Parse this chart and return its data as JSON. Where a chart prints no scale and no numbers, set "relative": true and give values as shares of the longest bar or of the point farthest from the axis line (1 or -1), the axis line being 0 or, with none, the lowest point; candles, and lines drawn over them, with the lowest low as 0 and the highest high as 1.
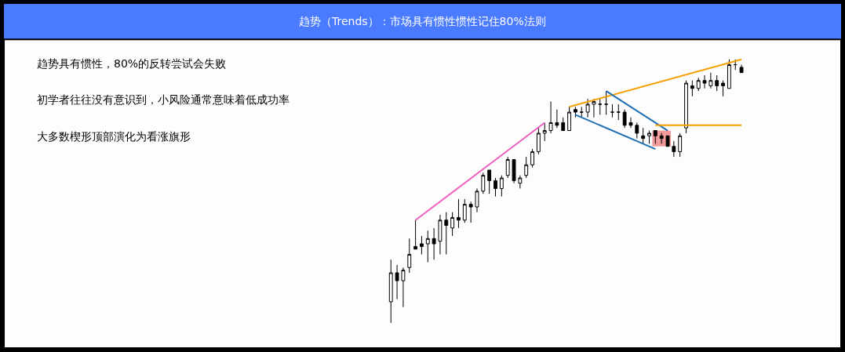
{
  "chart_data": {
    "type": "candlestick",
    "relative": true,
    "title": "趋势（Trends）：市场具有惯性惯性记住80%法则",
    "annotations": [
      "趋势具有惯性，80%的反转尝试会失败",
      "初学者往往没有意识到，小风险通常意味着低成功率",
      "大多数楔形顶部演化为看涨旗形"
    ],
    "categories": [
      null,
      null,
      null,
      null,
      null,
      null,
      null,
      null,
      null,
      null,
      null,
      null,
      null,
      null,
      null,
      null,
      null,
      null,
      null,
      null,
      null,
      null,
      null,
      null,
      null,
      null,
      null,
      null,
      null,
      null,
      null,
      null,
      null,
      null,
      null,
      null,
      null,
      null,
      null,
      null,
      null,
      null,
      null,
      null,
      null,
      null,
      null,
      null,
      null,
      null,
      null,
      null,
      null,
      null,
      null,
      null,
      null,
      null
    ],
    "ohlc": [
      [
        0.08,
        0.24,
        0,
        0.19
      ],
      [
        0.19,
        0.22,
        0.09,
        0.16
      ],
      [
        0.16,
        0.21,
        0.06,
        0.2
      ],
      [
        0.21,
        0.32,
        0.19,
        0.26
      ],
      [
        0.29,
        0.39,
        0.28,
        0.28
      ],
      [
        0.3,
        0.33,
        0.26,
        0.29
      ],
      [
        0.3,
        0.35,
        0.23,
        0.32
      ],
      [
        0.32,
        0.36,
        0.24,
        0.3
      ],
      [
        0.31,
        0.41,
        0.26,
        0.39
      ],
      [
        0.39,
        0.42,
        0.26,
        0.37
      ],
      [
        0.36,
        0.42,
        0.33,
        0.4
      ],
      [
        0.4,
        0.47,
        0.36,
        0.39
      ],
      [
        0.39,
        0.47,
        0.38,
        0.45
      ],
      [
        0.45,
        0.46,
        0.38,
        0.44
      ],
      [
        0.44,
        0.51,
        0.42,
        0.5
      ],
      [
        0.5,
        0.57,
        0.49,
        0.56
      ],
      [
        0.58,
        0.58,
        0.49,
        0.54
      ],
      [
        0.54,
        0.55,
        0.48,
        0.51
      ],
      [
        0.51,
        0.56,
        0.48,
        0.55
      ],
      [
        0.56,
        0.63,
        0.55,
        0.62
      ],
      [
        0.62,
        0.62,
        0.53,
        0.54
      ],
      [
        0.53,
        0.56,
        0.51,
        0.55
      ],
      [
        0.56,
        0.63,
        0.55,
        0.6
      ],
      [
        0.6,
        0.66,
        0.59,
        0.65
      ],
      [
        0.65,
        0.74,
        0.64,
        0.72
      ],
      [
        0.72,
        0.76,
        0.69,
        0.73
      ],
      [
        0.73,
        0.84,
        0.72,
        0.76
      ],
      [
        0.76,
        0.81,
        0.74,
        0.75
      ],
      [
        0.76,
        0.78,
        0.73,
        0.73
      ],
      [
        0.73,
        0.82,
        0.73,
        0.8
      ],
      [
        0.81,
        0.82,
        0.78,
        0.8
      ],
      [
        0.8,
        0.82,
        0.78,
        0.8
      ],
      [
        0.8,
        0.85,
        0.78,
        0.83
      ],
      [
        0.83,
        0.85,
        0.78,
        0.84
      ],
      [
        0.83,
        0.85,
        0.79,
        0.83
      ],
      [
        0.83,
        0.88,
        0.79,
        0.83
      ],
      [
        0.8,
        0.83,
        0.78,
        0.8
      ],
      [
        0.8,
        0.83,
        0.77,
        0.8
      ],
      [
        0.8,
        0.81,
        0.74,
        0.75
      ],
      [
        0.76,
        0.78,
        0.74,
        0.75
      ],
      [
        0.75,
        0.76,
        0.7,
        0.72
      ],
      [
        0.71,
        0.74,
        0.68,
        0.7
      ],
      [
        0.71,
        0.73,
        0.68,
        0.72
      ],
      [
        0.73,
        0.73,
        0.68,
        0.71
      ],
      [
        0.71,
        0.72,
        0.68,
        0.7
      ],
      [
        0.71,
        0.71,
        0.67,
        0.67
      ],
      [
        0.67,
        0.69,
        0.63,
        0.65
      ],
      [
        0.65,
        0.72,
        0.63,
        0.71
      ],
      [
        0.74,
        0.92,
        0.72,
        0.91
      ],
      [
        0.9,
        0.92,
        0.86,
        0.89
      ],
      [
        0.89,
        0.93,
        0.88,
        0.92
      ],
      [
        0.92,
        0.94,
        0.89,
        0.91
      ],
      [
        0.9,
        0.95,
        0.89,
        0.92
      ],
      [
        0.92,
        0.94,
        0.88,
        0.9
      ],
      [
        0.91,
        0.92,
        0.86,
        0.9
      ],
      [
        0.89,
        1.0,
        0.89,
        0.98
      ],
      [
        0.98,
        1.0,
        0.96,
        0.98
      ],
      [
        0.97,
        0.98,
        0.95,
        0.95
      ]
    ],
    "series": [
      {
        "type": "line",
        "color": "#ee5fbf",
        "values": [
          null,
          null,
          null,
          null,
          0.39,
          null,
          null,
          null,
          null,
          null,
          null,
          null,
          null,
          null,
          null,
          null,
          null,
          null,
          null,
          null,
          null,
          null,
          null,
          null,
          null,
          0.76,
          null,
          null,
          null,
          null,
          null,
          null,
          null,
          null,
          null,
          null,
          null,
          null,
          null,
          null,
          null,
          null,
          null,
          null,
          null,
          null,
          null,
          null,
          null,
          null,
          null,
          null,
          null,
          null,
          null,
          null,
          null,
          null
        ]
      },
      {
        "type": "line",
        "color": "#f5a000",
        "values": [
          null,
          null,
          null,
          null,
          null,
          null,
          null,
          null,
          null,
          null,
          null,
          null,
          null,
          null,
          null,
          null,
          null,
          null,
          null,
          null,
          null,
          null,
          null,
          null,
          null,
          null,
          null,
          null,
          null,
          0.82,
          null,
          null,
          null,
          null,
          null,
          null,
          null,
          null,
          null,
          null,
          null,
          null,
          null,
          null,
          null,
          null,
          null,
          null,
          null,
          null,
          null,
          null,
          null,
          null,
          null,
          null,
          null,
          1.0
        ]
      },
      {
        "type": "line",
        "color": "#1f6fb5",
        "values": [
          null,
          null,
          null,
          null,
          null,
          null,
          null,
          null,
          null,
          null,
          null,
          null,
          null,
          null,
          null,
          null,
          null,
          null,
          null,
          null,
          null,
          null,
          null,
          null,
          null,
          null,
          null,
          null,
          null,
          null,
          null,
          null,
          null,
          null,
          null,
          0.88,
          null,
          null,
          null,
          null,
          null,
          null,
          null,
          null,
          null,
          0.73,
          null,
          null,
          null,
          null,
          null,
          null,
          null,
          null,
          null,
          null,
          null,
          null
        ]
      },
      {
        "type": "line",
        "color": "#1f6fb5",
        "values": [
          null,
          null,
          null,
          null,
          null,
          null,
          null,
          null,
          null,
          null,
          null,
          null,
          null,
          null,
          null,
          null,
          null,
          null,
          null,
          null,
          null,
          null,
          null,
          null,
          null,
          null,
          null,
          null,
          null,
          null,
          0.79,
          null,
          null,
          null,
          null,
          null,
          null,
          null,
          null,
          null,
          null,
          null,
          null,
          0.66,
          null,
          null,
          null,
          null,
          null,
          null,
          null,
          null,
          null,
          null,
          null,
          null,
          null,
          null
        ]
      },
      {
        "type": "line",
        "color": "#f5a000",
        "values": [
          null,
          null,
          null,
          null,
          null,
          null,
          null,
          null,
          null,
          null,
          null,
          null,
          null,
          null,
          null,
          null,
          null,
          null,
          null,
          null,
          null,
          null,
          null,
          null,
          null,
          null,
          null,
          null,
          null,
          null,
          null,
          null,
          null,
          null,
          null,
          null,
          null,
          null,
          null,
          null,
          null,
          null,
          null,
          0.75,
          null,
          null,
          null,
          null,
          null,
          null,
          null,
          null,
          null,
          null,
          null,
          null,
          null,
          0.75
        ]
      },
      {
        "type": "bar",
        "color": "#f08080",
        "values": [
          null,
          null,
          null,
          null,
          null,
          null,
          null,
          null,
          null,
          null,
          null,
          null,
          null,
          null,
          null,
          null,
          null,
          null,
          null,
          null,
          null,
          null,
          null,
          null,
          null,
          null,
          null,
          null,
          null,
          null,
          null,
          null,
          null,
          null,
          null,
          null,
          null,
          null,
          null,
          null,
          null,
          null,
          null,
          0.06,
          0.06,
          0.06,
          null,
          null,
          null,
          null,
          null,
          null,
          null,
          null,
          null,
          null,
          null,
          null
        ],
        "base": [
          null,
          null,
          null,
          null,
          null,
          null,
          null,
          null,
          null,
          null,
          null,
          null,
          null,
          null,
          null,
          null,
          null,
          null,
          null,
          null,
          null,
          null,
          null,
          null,
          null,
          null,
          null,
          null,
          null,
          null,
          null,
          null,
          null,
          null,
          null,
          null,
          null,
          null,
          null,
          null,
          null,
          null,
          null,
          0.67,
          0.67,
          0.67,
          null,
          null,
          null,
          null,
          null,
          null,
          null,
          null,
          null,
          null,
          null,
          null
        ]
      }
    ]
  }
}
